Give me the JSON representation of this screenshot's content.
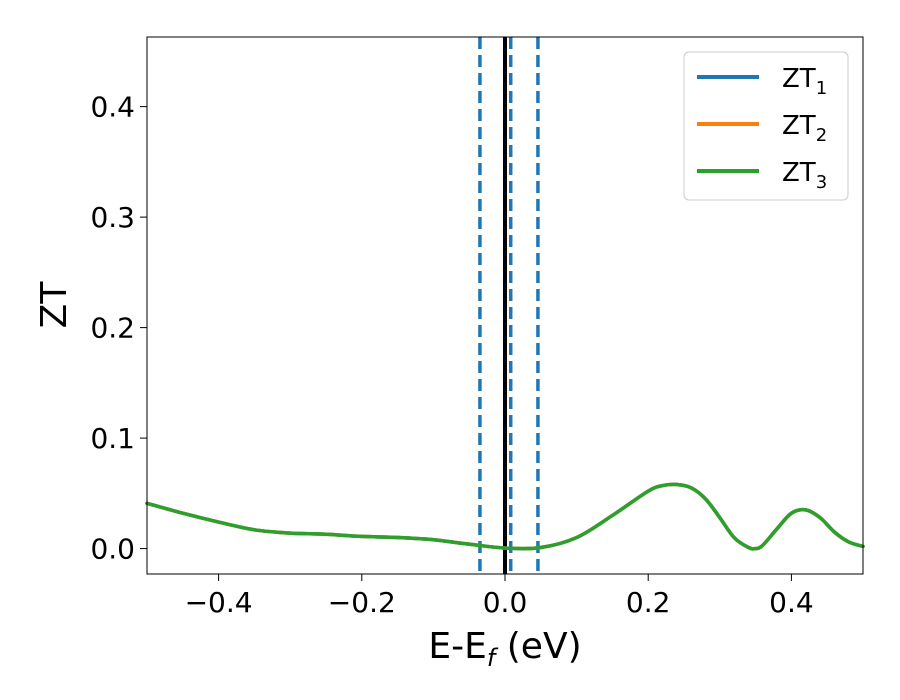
{
  "chart_data": {
    "type": "line",
    "xlabel": {
      "base": "E-E",
      "sub": "f",
      "rest": " (eV)"
    },
    "ylabel": "ZT",
    "xlim": [
      -0.5,
      0.5
    ],
    "ylim": [
      -0.023,
      0.463
    ],
    "xticks": [
      -0.4,
      -0.2,
      0.0,
      0.2,
      0.4
    ],
    "xtick_labels": [
      "−0.4",
      "−0.2",
      "0.0",
      "0.2",
      "0.4"
    ],
    "yticks": [
      0.0,
      0.1,
      0.2,
      0.3,
      0.4
    ],
    "ytick_labels": [
      "0.0",
      "0.1",
      "0.2",
      "0.3",
      "0.4"
    ],
    "grid": false,
    "legend_position": "top-right",
    "fermi_line": {
      "x": 0.0,
      "color": "#000000",
      "style": "solid"
    },
    "dashed_lines": [
      {
        "x": -0.035,
        "color": "#1f77b4"
      },
      {
        "x": 0.008,
        "color": "#1f77b4"
      },
      {
        "x": 0.046,
        "color": "#1f77b4"
      }
    ],
    "x": [
      -0.5,
      -0.45,
      -0.4,
      -0.35,
      -0.3,
      -0.25,
      -0.2,
      -0.15,
      -0.1,
      -0.05,
      0.0,
      0.05,
      0.1,
      0.15,
      0.2,
      0.22,
      0.24,
      0.26,
      0.28,
      0.3,
      0.32,
      0.34,
      0.35,
      0.36,
      0.38,
      0.4,
      0.42,
      0.44,
      0.46,
      0.48,
      0.5
    ],
    "series": [
      {
        "name": "ZT",
        "sub": "1",
        "color": "#1f77b4",
        "values": [
          0.041,
          0.032,
          0.024,
          0.017,
          0.014,
          0.013,
          0.011,
          0.01,
          0.008,
          0.004,
          0.0005,
          0.001,
          0.01,
          0.03,
          0.052,
          0.057,
          0.058,
          0.055,
          0.045,
          0.028,
          0.01,
          0.001,
          0.0,
          0.003,
          0.018,
          0.032,
          0.035,
          0.028,
          0.015,
          0.006,
          0.002
        ]
      },
      {
        "name": "ZT",
        "sub": "2",
        "color": "#ff7f0e",
        "values": [
          0.041,
          0.032,
          0.024,
          0.017,
          0.014,
          0.013,
          0.011,
          0.01,
          0.008,
          0.004,
          0.0005,
          0.001,
          0.01,
          0.03,
          0.052,
          0.057,
          0.058,
          0.055,
          0.045,
          0.028,
          0.01,
          0.001,
          0.0,
          0.003,
          0.018,
          0.032,
          0.035,
          0.028,
          0.015,
          0.006,
          0.002
        ]
      },
      {
        "name": "ZT",
        "sub": "3",
        "color": "#2ca02c",
        "values": [
          0.041,
          0.032,
          0.024,
          0.017,
          0.014,
          0.013,
          0.011,
          0.01,
          0.008,
          0.004,
          0.0005,
          0.001,
          0.01,
          0.03,
          0.052,
          0.057,
          0.058,
          0.055,
          0.045,
          0.028,
          0.01,
          0.001,
          0.0,
          0.003,
          0.018,
          0.032,
          0.035,
          0.028,
          0.015,
          0.006,
          0.002
        ]
      }
    ]
  }
}
